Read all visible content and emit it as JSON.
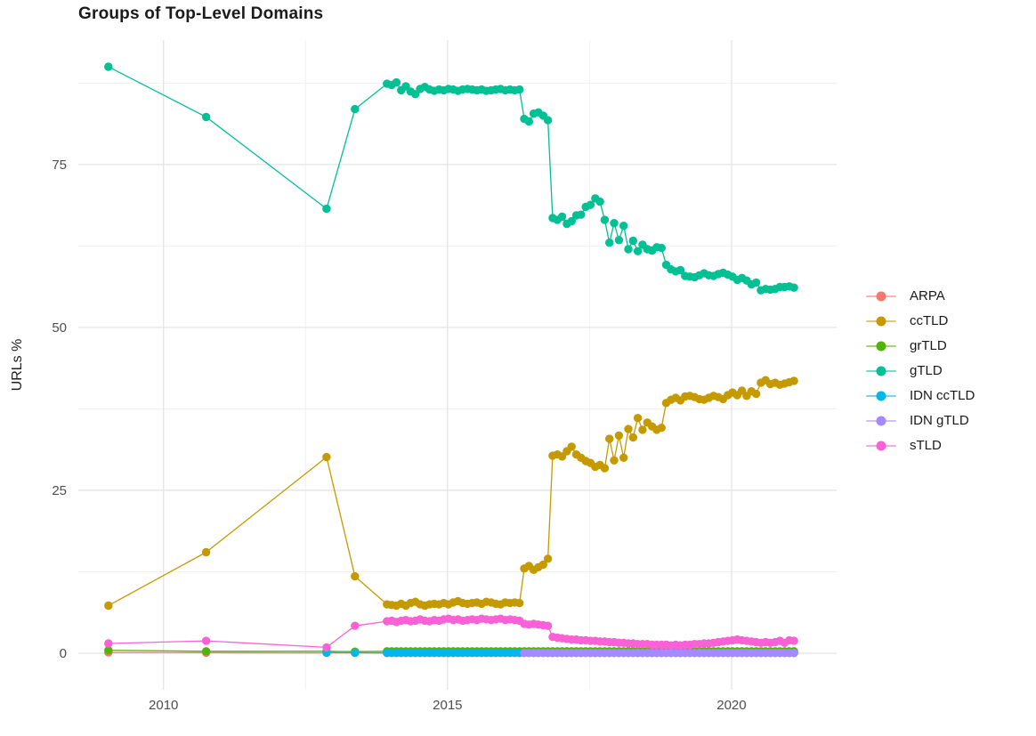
{
  "page": {
    "background": "#ffffff"
  },
  "chart_data": {
    "type": "line",
    "title": "Groups of Top-Level Domains",
    "xlabel": "",
    "ylabel": "URLs %",
    "grid": true,
    "legend_position": "right",
    "x_ticks": [
      2010,
      2015,
      2020
    ],
    "x_minor_ticks": [
      2012.5,
      2017.5
    ],
    "y_ticks": [
      0,
      25,
      50,
      75
    ],
    "y_minor_ticks": [
      12.5,
      37.5,
      62.5,
      87.5
    ],
    "x_domain": [
      2008.5,
      2021.85
    ],
    "y_domain": [
      -5.6,
      94.1
    ],
    "monthly_start": 2013.9333,
    "monthly_step": 0.0833333,
    "colors": {
      "ARPA": "#F8766D",
      "ccTLD": "#C49A00",
      "grTLD": "#53B400",
      "gTLD": "#00C094",
      "IDN ccTLD": "#00B6EB",
      "IDN gTLD": "#A58AFF",
      "sTLD": "#FB61D7"
    },
    "series": [
      {
        "name": "ARPA",
        "color": "#F8766D",
        "pre": [
          [
            2009.03,
            0.12
          ],
          [
            2010.75,
            0.08
          ],
          [
            2012.87,
            0.06
          ],
          [
            2013.37,
            0.05
          ]
        ],
        "start_index": 0,
        "monthly_fill": 0.04,
        "monthly_count": 87
      },
      {
        "name": "ccTLD",
        "color": "#C49A00",
        "pre": [
          [
            2009.03,
            7.3
          ],
          [
            2010.75,
            15.5
          ],
          [
            2012.87,
            30.1
          ],
          [
            2013.37,
            11.8
          ]
        ],
        "start_index": 0,
        "monthly": [
          7.5,
          7.4,
          7.3,
          7.6,
          7.3,
          7.7,
          7.9,
          7.5,
          7.3,
          7.5,
          7.6,
          7.5,
          7.7,
          7.5,
          7.8,
          8.0,
          7.7,
          7.6,
          7.7,
          7.8,
          7.6,
          7.9,
          7.8,
          7.6,
          7.5,
          7.8,
          7.7,
          7.8,
          7.7,
          13.0,
          13.4,
          12.8,
          13.2,
          13.6,
          14.5,
          30.3,
          30.5,
          30.2,
          31.0,
          31.7,
          30.5,
          30.0,
          29.5,
          29.2,
          28.6,
          28.9,
          28.4,
          32.9,
          29.6,
          33.4,
          30.0,
          34.4,
          33.1,
          36.1,
          34.3,
          35.4,
          34.8,
          34.3,
          34.6,
          38.4,
          38.9,
          39.2,
          38.8,
          39.4,
          39.5,
          39.3,
          39.0,
          38.9,
          39.2,
          39.5,
          39.3,
          39.0,
          39.6,
          40.0,
          39.6,
          40.3,
          39.5,
          40.2,
          39.8,
          41.5,
          41.9,
          41.3,
          41.5,
          41.2,
          41.4,
          41.6,
          41.8
        ]
      },
      {
        "name": "grTLD",
        "color": "#53B400",
        "pre": [
          [
            2009.03,
            0.45
          ],
          [
            2010.75,
            0.3
          ],
          [
            2012.87,
            0.3
          ],
          [
            2013.37,
            0.25
          ]
        ],
        "start_index": 0,
        "monthly_fill": 0.3,
        "monthly_count": 87
      },
      {
        "name": "gTLD",
        "color": "#00C094",
        "pre": [
          [
            2009.03,
            90.0
          ],
          [
            2010.75,
            82.3
          ],
          [
            2012.87,
            68.2
          ],
          [
            2013.37,
            83.5
          ]
        ],
        "start_index": 0,
        "monthly": [
          87.4,
          87.2,
          87.6,
          86.4,
          87.0,
          86.2,
          85.8,
          86.6,
          86.9,
          86.5,
          86.3,
          86.5,
          86.4,
          86.6,
          86.5,
          86.3,
          86.5,
          86.6,
          86.5,
          86.4,
          86.5,
          86.3,
          86.4,
          86.5,
          86.6,
          86.4,
          86.5,
          86.4,
          86.5,
          82.0,
          81.6,
          82.8,
          83.0,
          82.5,
          81.8,
          66.8,
          66.5,
          67.0,
          65.9,
          66.3,
          67.2,
          67.3,
          68.5,
          68.8,
          69.8,
          69.3,
          66.5,
          63.0,
          66.0,
          63.4,
          65.6,
          62.0,
          63.3,
          61.7,
          62.7,
          62.0,
          61.8,
          62.3,
          62.2,
          59.6,
          58.9,
          58.6,
          58.8,
          57.9,
          57.8,
          57.7,
          58.0,
          58.3,
          58.0,
          57.9,
          58.2,
          58.4,
          58.1,
          57.8,
          57.3,
          57.6,
          57.2,
          56.6,
          56.9,
          55.7,
          55.9,
          55.8,
          55.9,
          56.2,
          56.2,
          56.3,
          56.1
        ]
      },
      {
        "name": "IDN ccTLD",
        "color": "#00B6EB",
        "pre": [
          [
            2012.87,
            0.1
          ],
          [
            2013.37,
            0.08
          ]
        ],
        "start_index": 0,
        "monthly_fill": 0.06,
        "monthly_count": 87
      },
      {
        "name": "IDN gTLD",
        "color": "#A58AFF",
        "pre": [],
        "start_index": 29,
        "monthly_fill": 0.04,
        "monthly_count": 58
      },
      {
        "name": "sTLD",
        "color": "#FB61D7",
        "pre": [
          [
            2009.03,
            1.5
          ],
          [
            2010.75,
            1.9
          ],
          [
            2012.87,
            0.9
          ],
          [
            2013.37,
            4.2
          ]
        ],
        "start_index": 0,
        "monthly": [
          4.9,
          5.0,
          4.8,
          5.0,
          5.1,
          4.9,
          5.0,
          5.2,
          5.0,
          4.9,
          5.1,
          5.0,
          5.2,
          5.3,
          5.1,
          5.2,
          5.0,
          5.1,
          5.2,
          5.1,
          5.3,
          5.2,
          5.1,
          5.2,
          5.3,
          5.1,
          5.2,
          5.1,
          5.0,
          4.5,
          4.4,
          4.5,
          4.4,
          4.3,
          4.2,
          2.5,
          2.4,
          2.3,
          2.2,
          2.1,
          2.1,
          2.0,
          2.0,
          1.9,
          1.9,
          1.8,
          1.8,
          1.7,
          1.7,
          1.6,
          1.6,
          1.5,
          1.5,
          1.4,
          1.4,
          1.4,
          1.3,
          1.3,
          1.3,
          1.3,
          1.2,
          1.3,
          1.2,
          1.3,
          1.3,
          1.4,
          1.4,
          1.5,
          1.5,
          1.6,
          1.7,
          1.8,
          1.9,
          2.0,
          2.1,
          2.0,
          1.9,
          1.8,
          1.7,
          1.6,
          1.7,
          1.6,
          1.7,
          1.9,
          1.6,
          2.0,
          1.9
        ]
      }
    ]
  }
}
